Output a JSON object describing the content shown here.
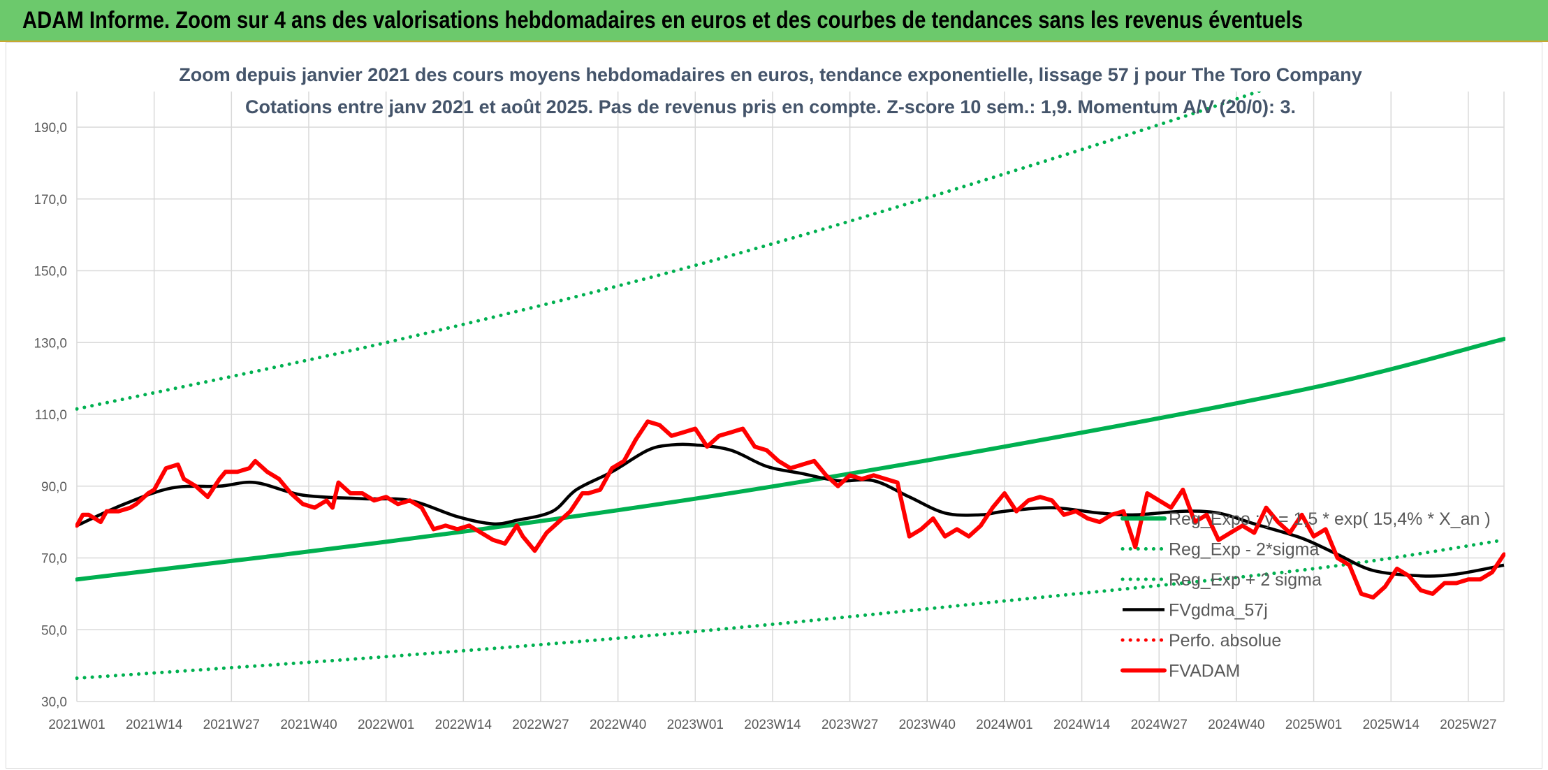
{
  "banner": {
    "title": "ADAM Informe. Zoom sur 4 ans des valorisations hebdomadaires en euros et des courbes de tendances sans les revenus éventuels"
  },
  "colors": {
    "banner_bg": "#6cc96c",
    "trend": "#00b050",
    "price": "#ff0000",
    "smooth": "#000000",
    "grid": "#d9d9d9"
  },
  "chart_data": {
    "type": "line",
    "title": "Zoom depuis janvier 2021 des cours moyens hebdomadaires en euros, tendance exponentielle, lissage 57 j pour The Toro Company",
    "subtitle": "Cotations entre janv 2021 et août 2025. Pas de revenus pris en compte. Z-score 10 sem.: 1,9. Momentum A/V (20/0): 3.",
    "ylim": [
      30,
      200
    ],
    "yticks": [
      "30,0",
      "50,0",
      "70,0",
      "90,0",
      "110,0",
      "130,0",
      "150,0",
      "170,0",
      "190,0"
    ],
    "yvalues": [
      30,
      50,
      70,
      90,
      110,
      130,
      150,
      170,
      190
    ],
    "xticks": [
      "2021W01",
      "2021W14",
      "2021W27",
      "2021W40",
      "2022W01",
      "2022W14",
      "2022W27",
      "2022W40",
      "2023W01",
      "2023W14",
      "2023W27",
      "2023W40",
      "2024W01",
      "2024W14",
      "2024W27",
      "2024W40",
      "2025W01",
      "2025W14",
      "2025W27"
    ],
    "x_range_weeks": [
      0,
      240
    ],
    "grid": true,
    "legend_position": "bottom-right",
    "series": [
      {
        "name": "Reg_Expo : y = 1,5 * exp( 15,4% *  X_an )",
        "style": "solid-thick",
        "color": "#00b050",
        "x": [
          0,
          52,
          104,
          156,
          208,
          240
        ],
        "y": [
          64,
          74.5,
          86.5,
          101,
          117.5,
          131
        ]
      },
      {
        "name": "Reg_Exp - 2*sigma",
        "style": "dotted",
        "color": "#00b050",
        "x": [
          0,
          52,
          104,
          156,
          208,
          240
        ],
        "y": [
          36.5,
          42.5,
          49.5,
          58,
          67,
          75
        ]
      },
      {
        "name": "Reg_Exp + 2 sigma",
        "style": "dotted",
        "color": "#00b050",
        "x": [
          0,
          52,
          104,
          156,
          208,
          240
        ],
        "y": [
          111.5,
          130,
          151.5,
          177,
          205.5,
          229
        ]
      },
      {
        "name": "FVgdma_57j",
        "style": "solid",
        "color": "#000000",
        "x": [
          0,
          8,
          16,
          24,
          30,
          38,
          48,
          56,
          64,
          70,
          74,
          80,
          84,
          90,
          96,
          100,
          104,
          110,
          116,
          122,
          128,
          134,
          140,
          146,
          152,
          156,
          164,
          172,
          178,
          186,
          192,
          198,
          206,
          212,
          218,
          226,
          232,
          240
        ],
        "y": [
          79,
          85,
          89.5,
          90,
          91,
          87.5,
          86.5,
          86,
          81.5,
          79.5,
          80.5,
          83,
          89,
          94,
          100,
          101.5,
          101.5,
          100,
          95.5,
          93.5,
          91.5,
          91.5,
          87,
          82.5,
          82,
          83,
          84,
          82.5,
          82,
          83,
          82.5,
          79.5,
          75.5,
          71,
          66.5,
          65,
          65.5,
          68
        ]
      },
      {
        "name": "Perfo. absolue",
        "style": "dotted",
        "color": "#ff0000",
        "x": [],
        "y": []
      },
      {
        "name": "FVADAM",
        "style": "solid-thick",
        "color": "#ff0000",
        "x": [
          0,
          1,
          2,
          4,
          5,
          7,
          9,
          10,
          12,
          13,
          15,
          17,
          18,
          20,
          22,
          24,
          25,
          27,
          29,
          30,
          32,
          34,
          36,
          38,
          40,
          42,
          43,
          44,
          46,
          48,
          50,
          52,
          54,
          56,
          58,
          60,
          62,
          64,
          66,
          68,
          70,
          72,
          74,
          75,
          77,
          79,
          81,
          83,
          85,
          86,
          88,
          90,
          92,
          94,
          96,
          98,
          100,
          102,
          104,
          106,
          108,
          110,
          112,
          114,
          116,
          118,
          120,
          122,
          124,
          126,
          128,
          130,
          132,
          134,
          136,
          138,
          140,
          142,
          144,
          146,
          148,
          150,
          152,
          154,
          156,
          158,
          160,
          162,
          164,
          166,
          168,
          170,
          172,
          174,
          176,
          178,
          180,
          182,
          184,
          186,
          188,
          190,
          192,
          194,
          196,
          198,
          200,
          202,
          204,
          206,
          208,
          210,
          212,
          214,
          216,
          218,
          220,
          222,
          224,
          226,
          228,
          230,
          232,
          234,
          236,
          238,
          240
        ],
        "y": [
          79,
          82,
          82,
          80,
          83,
          83,
          84,
          85,
          88,
          89,
          95,
          96,
          92,
          90,
          87,
          92,
          94,
          94,
          95,
          97,
          94,
          92,
          88,
          85,
          84,
          86,
          84,
          91,
          88,
          88,
          86,
          87,
          85,
          86,
          84,
          78,
          79,
          78,
          79,
          77,
          75,
          74,
          79,
          76,
          72,
          77,
          80,
          83,
          88,
          88,
          89,
          95,
          97,
          103,
          108,
          107,
          104,
          105,
          106,
          101,
          104,
          105,
          106,
          101,
          100,
          97,
          95,
          96,
          97,
          93,
          90,
          93,
          92,
          93,
          92,
          91,
          76,
          78,
          81,
          76,
          78,
          76,
          79,
          84,
          88,
          83,
          86,
          87,
          86,
          82,
          83,
          81,
          80,
          82,
          83,
          73,
          88,
          86,
          84,
          89,
          80,
          82,
          75,
          77,
          79,
          77,
          84,
          80,
          77,
          82,
          76,
          78,
          70,
          68,
          60,
          59,
          62,
          67,
          65,
          61,
          60,
          63,
          63,
          64,
          64,
          66,
          71
        ]
      }
    ]
  }
}
